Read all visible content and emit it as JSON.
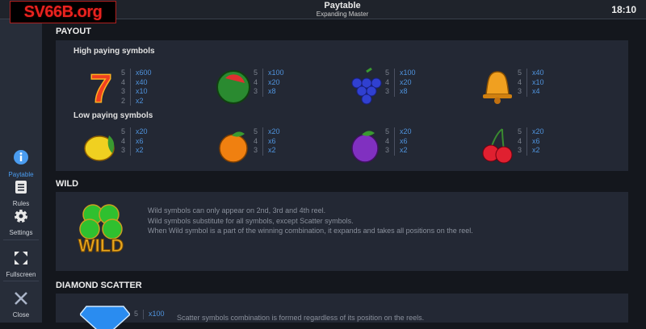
{
  "header": {
    "title": "Paytable",
    "subtitle": "Expanding Master",
    "time": "18:10"
  },
  "watermark": "SV66B.org",
  "sidebar": {
    "items": [
      {
        "label": "Paytable",
        "icon": "info-icon",
        "active": true
      },
      {
        "label": "Rules",
        "icon": "document-icon"
      },
      {
        "label": "Settings",
        "icon": "gear-icon"
      },
      {
        "label": "Fullscreen",
        "icon": "fullscreen-icon"
      },
      {
        "label": "Close",
        "icon": "close-icon"
      }
    ]
  },
  "payout": {
    "title": "PAYOUT",
    "high_label": "High paying symbols",
    "low_label": "Low paying symbols",
    "high": [
      {
        "symbol": "seven",
        "pays": [
          [
            "5",
            "x600"
          ],
          [
            "4",
            "x40"
          ],
          [
            "3",
            "x10"
          ],
          [
            "2",
            "x2"
          ]
        ]
      },
      {
        "symbol": "watermelon",
        "pays": [
          [
            "5",
            "x100"
          ],
          [
            "4",
            "x20"
          ],
          [
            "3",
            "x8"
          ]
        ]
      },
      {
        "symbol": "grapes",
        "pays": [
          [
            "5",
            "x100"
          ],
          [
            "4",
            "x20"
          ],
          [
            "3",
            "x8"
          ]
        ]
      },
      {
        "symbol": "bell",
        "pays": [
          [
            "5",
            "x40"
          ],
          [
            "4",
            "x10"
          ],
          [
            "3",
            "x4"
          ]
        ]
      }
    ],
    "low": [
      {
        "symbol": "lemon",
        "pays": [
          [
            "5",
            "x20"
          ],
          [
            "4",
            "x6"
          ],
          [
            "3",
            "x2"
          ]
        ]
      },
      {
        "symbol": "orange",
        "pays": [
          [
            "5",
            "x20"
          ],
          [
            "4",
            "x6"
          ],
          [
            "3",
            "x2"
          ]
        ]
      },
      {
        "symbol": "plum",
        "pays": [
          [
            "5",
            "x20"
          ],
          [
            "4",
            "x6"
          ],
          [
            "3",
            "x2"
          ]
        ]
      },
      {
        "symbol": "cherry",
        "pays": [
          [
            "5",
            "x20"
          ],
          [
            "4",
            "x6"
          ],
          [
            "3",
            "x2"
          ]
        ]
      }
    ]
  },
  "wild": {
    "title": "WILD",
    "symbol_text": "WILD",
    "lines": [
      "Wild symbols can only appear on 2nd, 3rd and 4th reel.",
      "Wild symbols substitute for all symbols, except Scatter symbols.",
      "When Wild symbol is a part of the winning combination, it expands and takes all positions on the reel."
    ]
  },
  "scatter": {
    "title": "DIAMOND SCATTER",
    "pays": [
      [
        "5",
        "x100"
      ]
    ],
    "lines": [
      "Scatter symbols combination is formed regardless of its position on the reels."
    ]
  }
}
